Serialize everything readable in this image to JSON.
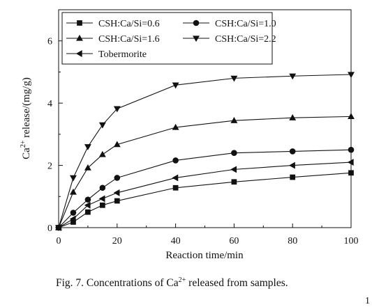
{
  "chart_data": {
    "type": "line",
    "title": "",
    "xlabel": "Reaction time/min",
    "ylabel_main": "Ca",
    "ylabel_sup": "2+",
    "ylabel_rest": " release/(mg/g)",
    "xlim": [
      0,
      100
    ],
    "ylim": [
      0,
      7
    ],
    "x_ticks": [
      0,
      20,
      40,
      60,
      80,
      100
    ],
    "y_ticks": [
      0,
      2,
      4,
      6
    ],
    "grid": false,
    "legend_position": "top-left",
    "x": [
      0,
      5,
      10,
      15,
      20,
      40,
      60,
      80,
      100
    ],
    "series": [
      {
        "name": "CSH:Ca/Si=0.6",
        "marker": "square",
        "values": [
          0,
          0.18,
          0.5,
          0.72,
          0.86,
          1.28,
          1.47,
          1.62,
          1.76
        ]
      },
      {
        "name": "CSH:Ca/Si=1.0",
        "marker": "circle",
        "values": [
          0,
          0.48,
          0.9,
          1.28,
          1.6,
          2.16,
          2.4,
          2.45,
          2.5
        ]
      },
      {
        "name": "CSH:Ca/Si=1.6",
        "marker": "triangle-up",
        "values": [
          0,
          1.14,
          1.92,
          2.35,
          2.67,
          3.22,
          3.44,
          3.53,
          3.57
        ]
      },
      {
        "name": "CSH:Ca/Si=2.2",
        "marker": "triangle-down",
        "values": [
          0,
          1.6,
          2.6,
          3.3,
          3.82,
          4.58,
          4.8,
          4.87,
          4.92
        ]
      },
      {
        "name": "Tobermorite",
        "marker": "triangle-left",
        "values": [
          0,
          0.28,
          0.72,
          0.93,
          1.12,
          1.6,
          1.87,
          2.0,
          2.1
        ]
      }
    ]
  },
  "caption": {
    "prefix": "Fig. 7.  Concentrations of Ca",
    "sup": "2+",
    "suffix": " released from samples."
  },
  "page_number": "1"
}
